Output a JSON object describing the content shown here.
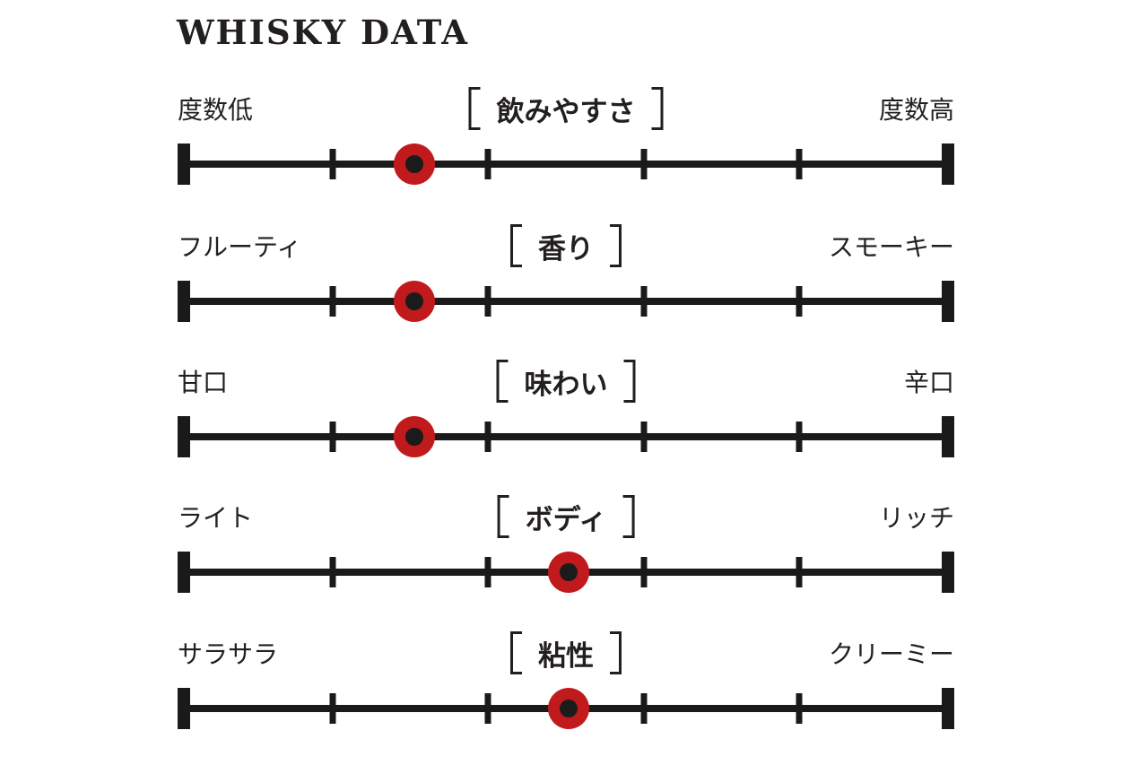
{
  "page": {
    "title": "WHISKY DATA"
  },
  "colors": {
    "ink": "#231F20",
    "line_black": "#1A1A1A",
    "marker_red": "#C11A1C",
    "background": "#FFFFFF"
  },
  "chart_data": {
    "type": "dot-scale",
    "title": "WHISKY DATA",
    "scale_segments": 5,
    "legend_position": "none",
    "rows": [
      {
        "label": "飲みやすさ",
        "left": "度数低",
        "right": "度数高",
        "position": 0.305
      },
      {
        "label": "香り",
        "left": "フルーティ",
        "right": "スモーキー",
        "position": 0.305
      },
      {
        "label": "味わい",
        "left": "甘口",
        "right": "辛口",
        "position": 0.305
      },
      {
        "label": "ボディ",
        "left": "ライト",
        "right": "リッチ",
        "position": 0.503
      },
      {
        "label": "粘性",
        "left": "サラサラ",
        "right": "クリーミー",
        "position": 0.503
      }
    ]
  }
}
